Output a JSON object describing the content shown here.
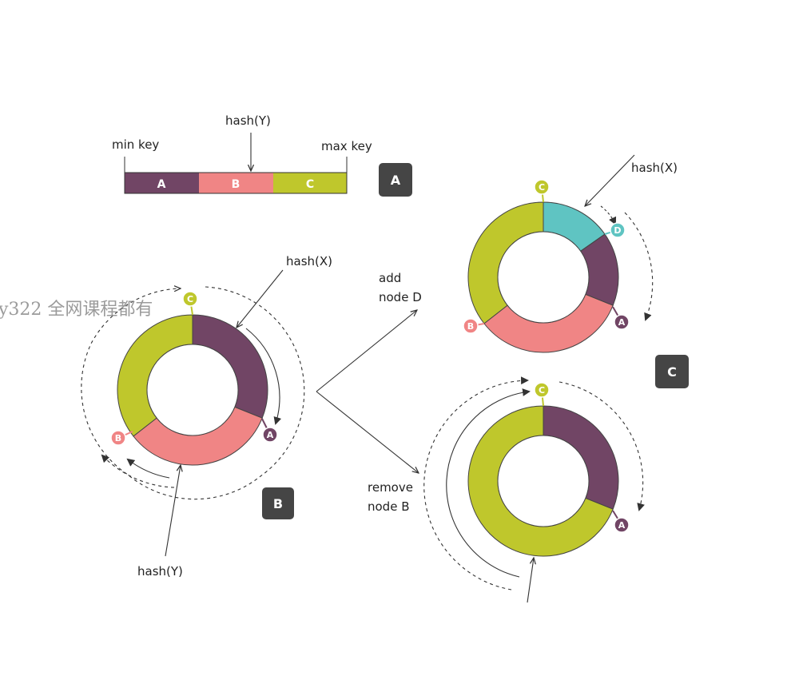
{
  "colors": {
    "node_a": "#714565",
    "node_b": "#f08585",
    "node_c": "#bfc72c",
    "node_d": "#5fc4c2",
    "box": "#454545",
    "line": "#333333"
  },
  "panel_a": {
    "box_label": "A",
    "min_key": "min key",
    "max_key": "max key",
    "hash_y": "hash(Y)",
    "segments": [
      "A",
      "B",
      "C"
    ]
  },
  "panel_b": {
    "box_label": "B",
    "hash_x": "hash(X)",
    "hash_y": "hash(Y)",
    "nodes": [
      "A",
      "B",
      "C"
    ]
  },
  "panel_c": {
    "box_label": "C",
    "add_label": [
      "add",
      "node D"
    ],
    "remove_label": [
      "remove",
      "node B"
    ],
    "hash_x": "hash(X)",
    "top_nodes": [
      "A",
      "B",
      "C",
      "D"
    ],
    "bottom_nodes": [
      "A",
      "C"
    ]
  },
  "watermark": "y322 全网课程都有"
}
